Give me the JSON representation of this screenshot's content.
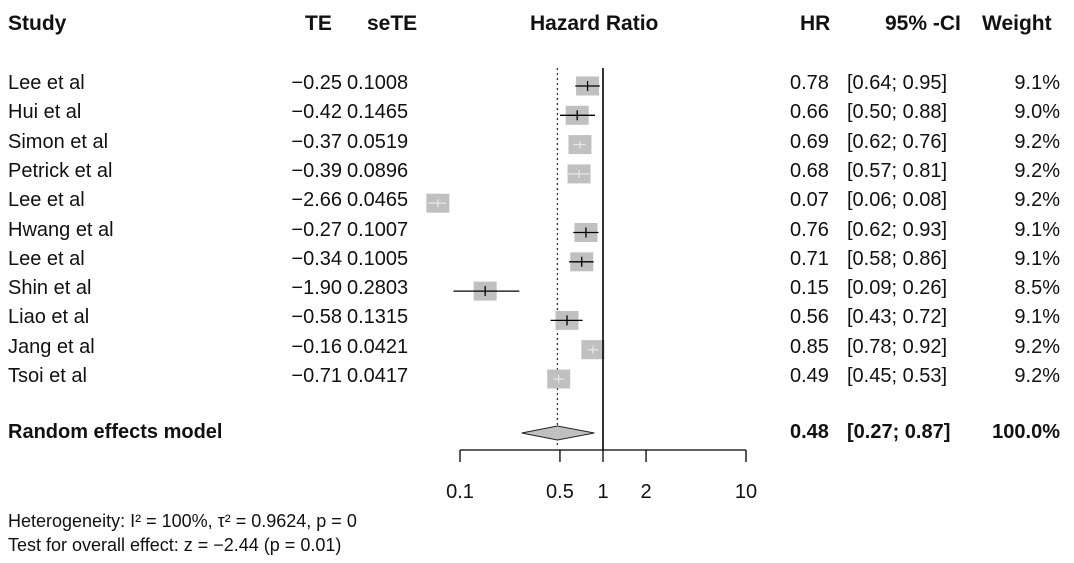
{
  "headers": {
    "study": "Study",
    "te": "TE",
    "sete": "seTE",
    "plot": "Hazard Ratio",
    "hr": "HR",
    "ci": "95% -CI",
    "weight": "Weight"
  },
  "rows": [
    {
      "study": "Lee et al",
      "te": "−0.25",
      "sete": "0.1008",
      "hr": "0.78",
      "ci": "[0.64; 0.95]",
      "weight": "9.1%"
    },
    {
      "study": "Hui et al",
      "te": "−0.42",
      "sete": "0.1465",
      "hr": "0.66",
      "ci": "[0.50; 0.88]",
      "weight": "9.0%"
    },
    {
      "study": "Simon et al",
      "te": "−0.37",
      "sete": "0.0519",
      "hr": "0.69",
      "ci": "[0.62; 0.76]",
      "weight": "9.2%"
    },
    {
      "study": "Petrick et al",
      "te": "−0.39",
      "sete": "0.0896",
      "hr": "0.68",
      "ci": "[0.57; 0.81]",
      "weight": "9.2%"
    },
    {
      "study": "Lee et al",
      "te": "−2.66",
      "sete": "0.0465",
      "hr": "0.07",
      "ci": "[0.06; 0.08]",
      "weight": "9.2%"
    },
    {
      "study": "Hwang et al",
      "te": "−0.27",
      "sete": "0.1007",
      "hr": "0.76",
      "ci": "[0.62; 0.93]",
      "weight": "9.1%"
    },
    {
      "study": "Lee et al",
      "te": "−0.34",
      "sete": "0.1005",
      "hr": "0.71",
      "ci": "[0.58; 0.86]",
      "weight": "9.1%"
    },
    {
      "study": "Shin et al",
      "te": "−1.90",
      "sete": "0.2803",
      "hr": "0.15",
      "ci": "[0.09; 0.26]",
      "weight": "8.5%"
    },
    {
      "study": "Liao et al",
      "te": "−0.58",
      "sete": "0.1315",
      "hr": "0.56",
      "ci": "[0.43; 0.72]",
      "weight": "9.1%"
    },
    {
      "study": "Jang et al",
      "te": "−0.16",
      "sete": "0.0421",
      "hr": "0.85",
      "ci": "[0.78; 0.92]",
      "weight": "9.2%"
    },
    {
      "study": "Tsoi et al",
      "te": "−0.71",
      "sete": "0.0417",
      "hr": "0.49",
      "ci": "[0.45; 0.53]",
      "weight": "9.2%"
    }
  ],
  "summary": {
    "label": "Random effects model",
    "hr": "0.48",
    "ci": "[0.27; 0.87]",
    "weight": "100.0%"
  },
  "footer": {
    "heterogeneity": "Heterogeneity: I² = 100%, τ² = 0.9624, p = 0",
    "overall": "Test for overall effect: z = −2.44 (p = 0.01)"
  },
  "chart_data": {
    "type": "forest",
    "xlabel": "Hazard Ratio",
    "x_scale": "log",
    "xlim": [
      0.1,
      10
    ],
    "ticks": [
      0.1,
      0.5,
      1,
      2,
      10
    ],
    "tick_labels": [
      "0.1",
      "0.5",
      "1",
      "2",
      "10"
    ],
    "reference_line": 1,
    "summary_line": 0.48,
    "studies": [
      {
        "hr": 0.78,
        "lower": 0.64,
        "upper": 0.95,
        "weight": 9.1
      },
      {
        "hr": 0.66,
        "lower": 0.5,
        "upper": 0.88,
        "weight": 9.0
      },
      {
        "hr": 0.69,
        "lower": 0.62,
        "upper": 0.76,
        "weight": 9.2
      },
      {
        "hr": 0.68,
        "lower": 0.57,
        "upper": 0.81,
        "weight": 9.2
      },
      {
        "hr": 0.07,
        "lower": 0.06,
        "upper": 0.08,
        "weight": 9.2
      },
      {
        "hr": 0.76,
        "lower": 0.62,
        "upper": 0.93,
        "weight": 9.1
      },
      {
        "hr": 0.71,
        "lower": 0.58,
        "upper": 0.86,
        "weight": 9.1
      },
      {
        "hr": 0.15,
        "lower": 0.09,
        "upper": 0.26,
        "weight": 8.5
      },
      {
        "hr": 0.56,
        "lower": 0.43,
        "upper": 0.72,
        "weight": 9.1
      },
      {
        "hr": 0.85,
        "lower": 0.78,
        "upper": 0.92,
        "weight": 9.2
      },
      {
        "hr": 0.49,
        "lower": 0.45,
        "upper": 0.53,
        "weight": 9.2
      }
    ],
    "pooled": {
      "hr": 0.48,
      "lower": 0.27,
      "upper": 0.87,
      "weight": 100.0
    },
    "colors": {
      "box": "#c0c0c0",
      "box_highlight": "#e6e6e6",
      "line": "#000000",
      "diamond": "#c0c0c0"
    }
  }
}
